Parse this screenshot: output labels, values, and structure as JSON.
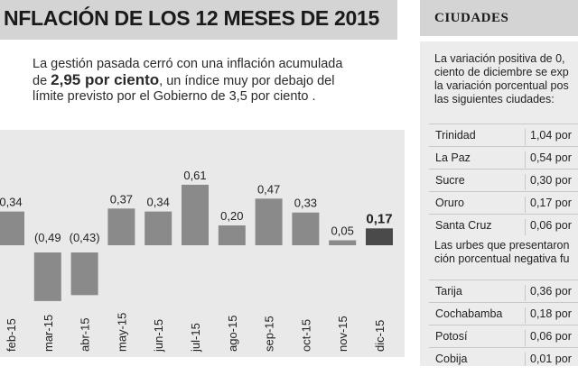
{
  "title": "NFLACIÓN DE LOS 12 MESES DE 2015",
  "intro": {
    "line1": "La gestión pasada cerró con una inflación acumulada",
    "line2_pre": "de ",
    "line2_bold": "2,95 por ciento",
    "line2_post": ", un índice muy por debajo del",
    "line3": "límite previsto por el Gobierno de 3,5 por ciento  ."
  },
  "chart_data": {
    "type": "bar",
    "categories": [
      "feb-15",
      "mar-15",
      "abr-15",
      "may-15",
      "jun-15",
      "jul-15",
      "ago-15",
      "sep-15",
      "oct-15",
      "nov-15",
      "dic-15"
    ],
    "values": [
      0.34,
      -0.49,
      -0.43,
      0.37,
      0.34,
      0.61,
      0.2,
      0.47,
      0.33,
      0.05,
      0.17
    ],
    "labels": [
      "0,34",
      "(0,49",
      "(0,43)",
      "0,37",
      "0,34",
      "0,61",
      "0,20",
      "0,47",
      "0,33",
      "0,05",
      "0,17"
    ],
    "highlight_index": 10,
    "colors": {
      "bar": "#8a8a8a",
      "highlight": "#4a4a4a",
      "panel": "#e9e9e9"
    }
  },
  "sidebar": {
    "title": "CIUDADES",
    "para1": [
      "La variación positiva de 0,",
      "ciento de diciembre se exp",
      "la variación porcentual pos",
      "las siguientes ciudades:"
    ],
    "group1": [
      {
        "city": "Trinidad",
        "value": "1,04 por"
      },
      {
        "city": "La Paz",
        "value": "0,54 por"
      },
      {
        "city": "Sucre",
        "value": "0,30 por"
      },
      {
        "city": "Oruro",
        "value": "0,17 por"
      },
      {
        "city": "Santa Cruz",
        "value": "0,06 por"
      }
    ],
    "para2": [
      "Las urbes que presentaron",
      "ción porcentual negativa fu"
    ],
    "group2": [
      {
        "city": "Tarija",
        "value": "0,36 por"
      },
      {
        "city": "Cochabamba",
        "value": "0,18 por"
      },
      {
        "city": "Potosí",
        "value": "0,06 por"
      },
      {
        "city": "Cobija",
        "value": "0,01 por"
      }
    ]
  }
}
